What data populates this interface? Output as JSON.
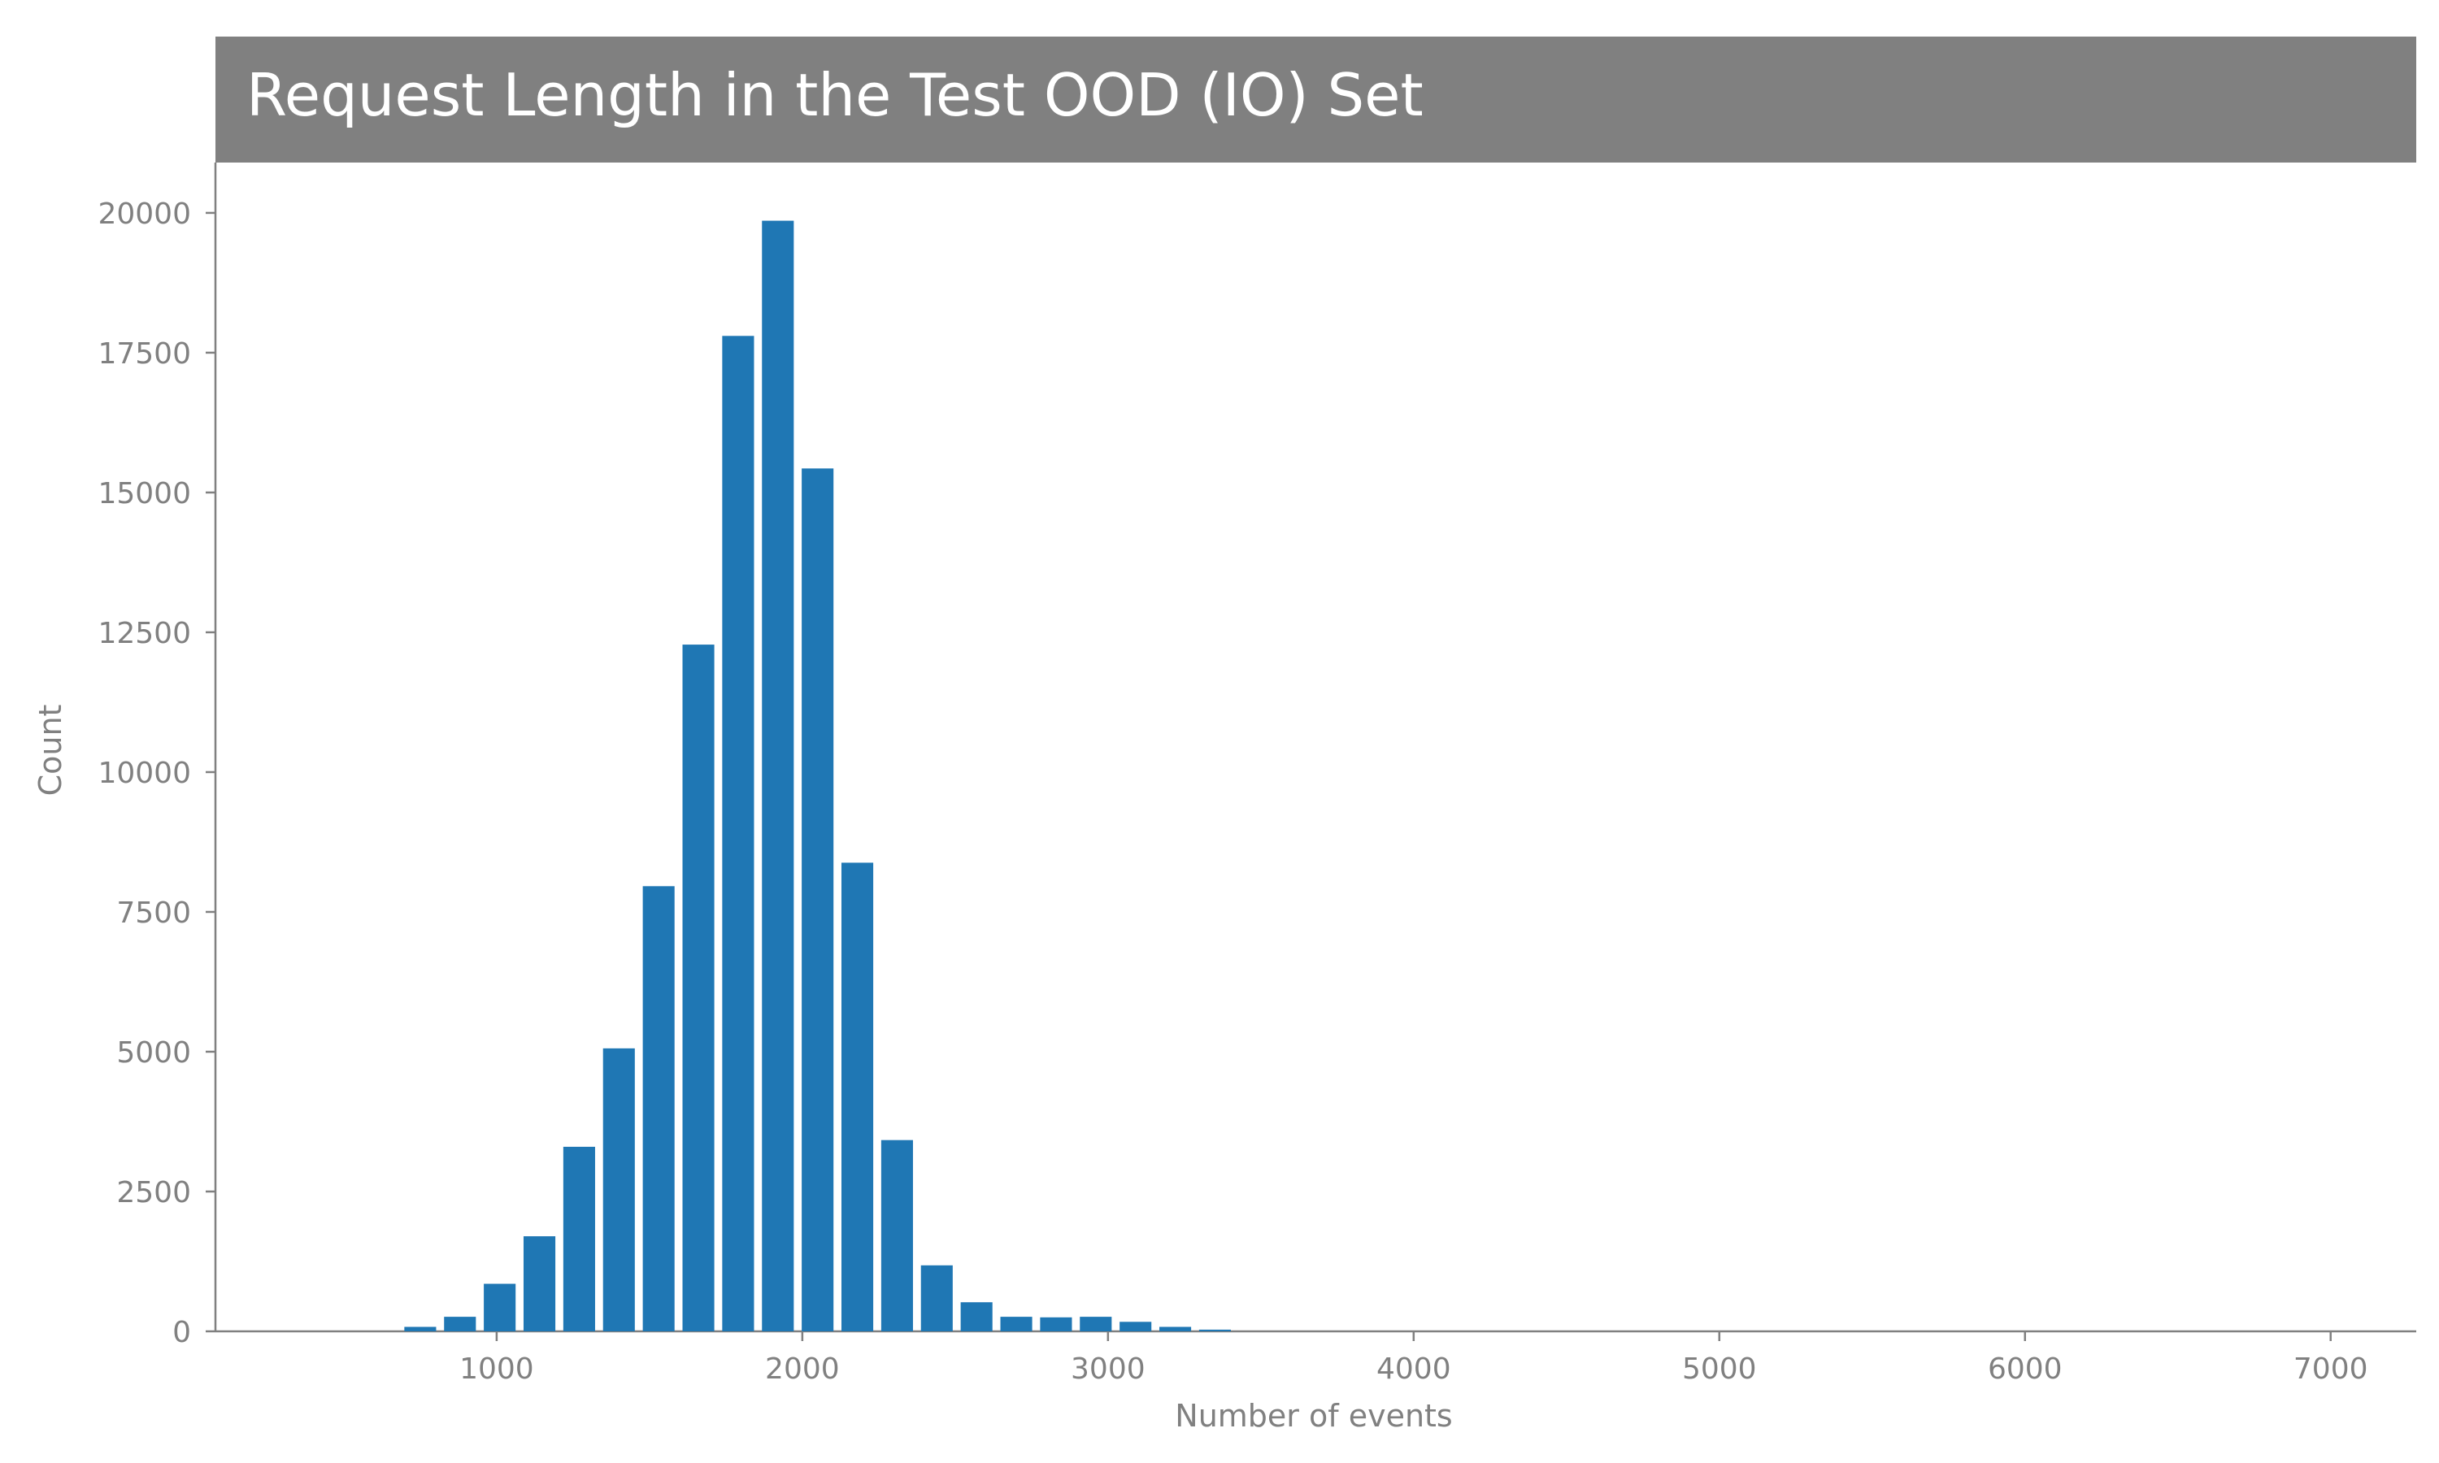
{
  "chart_data": {
    "type": "bar",
    "title": "Request Length in the Test OOD (IO) Set",
    "xlabel": "Number of events",
    "ylabel": "Count",
    "xlim": [
      80,
      7280
    ],
    "ylim": [
      0,
      20900
    ],
    "bin_width": 130,
    "x": [
      750,
      880,
      1010,
      1140,
      1270,
      1400,
      1530,
      1660,
      1790,
      1920,
      2050,
      2180,
      2310,
      2440,
      2570,
      2700,
      2830,
      2960,
      3090,
      3220,
      3350
    ],
    "values": [
      80,
      260,
      850,
      1700,
      3300,
      5060,
      7960,
      12280,
      17800,
      19860,
      15430,
      8380,
      3420,
      1180,
      520,
      260,
      250,
      260,
      170,
      80,
      30
    ],
    "xticks": [
      1000,
      2000,
      3000,
      4000,
      5000,
      6000,
      7000
    ],
    "yticks": [
      0,
      2500,
      5000,
      7500,
      10000,
      12500,
      15000,
      17500,
      20000
    ],
    "bar_color": "#1f77b4",
    "title_bg_color": "#808080",
    "axis_color": "#808080",
    "grid": false,
    "legend": "none"
  }
}
